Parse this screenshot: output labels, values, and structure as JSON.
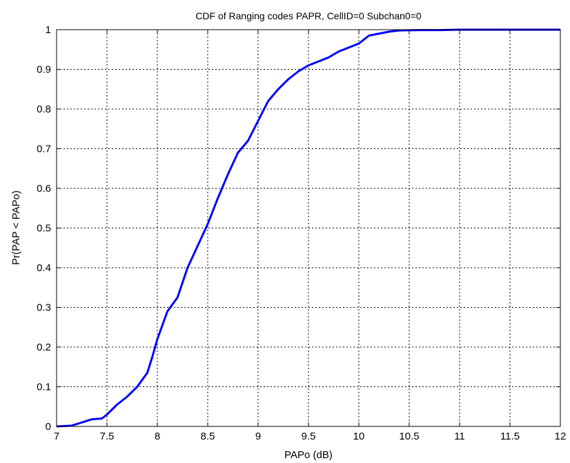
{
  "chart_data": {
    "type": "line",
    "title": "CDF of Ranging codes PAPR, CellID=0  Subchan0=0",
    "xlabel": "PAPo (dB)",
    "ylabel": "Pr(PAP < PAPo)",
    "xlim": [
      7,
      12
    ],
    "ylim": [
      0,
      1
    ],
    "xticks": [
      7,
      7.5,
      8,
      8.5,
      9,
      9.5,
      10,
      10.5,
      11,
      11.5,
      12
    ],
    "xtick_labels": [
      "7",
      "7.5",
      "8",
      "8.5",
      "9",
      "9.5",
      "10",
      "10.5",
      "11",
      "11.5",
      "12"
    ],
    "yticks": [
      0,
      0.1,
      0.2,
      0.3,
      0.4,
      0.5,
      0.6,
      0.7,
      0.8,
      0.9,
      1
    ],
    "ytick_labels": [
      "0",
      "0.1",
      "0.2",
      "0.3",
      "0.4",
      "0.5",
      "0.6",
      "0.7",
      "0.8",
      "0.9",
      "1"
    ],
    "grid": true,
    "line_color": "#0000ff",
    "series": [
      {
        "x": [
          7.0,
          7.15,
          7.25,
          7.35,
          7.45,
          7.5,
          7.6,
          7.7,
          7.8,
          7.9,
          7.95,
          8.0,
          8.05,
          8.1,
          8.2,
          8.3,
          8.4,
          8.5,
          8.6,
          8.7,
          8.8,
          8.9,
          9.0,
          9.1,
          9.2,
          9.3,
          9.4,
          9.5,
          9.6,
          9.7,
          9.8,
          9.9,
          10.0,
          10.1,
          10.2,
          10.3,
          10.4,
          10.6,
          10.8,
          11.0,
          11.1,
          11.5,
          12.0
        ],
        "y": [
          0.0,
          0.002,
          0.01,
          0.018,
          0.02,
          0.03,
          0.055,
          0.075,
          0.1,
          0.135,
          0.175,
          0.22,
          0.255,
          0.29,
          0.325,
          0.4,
          0.455,
          0.51,
          0.575,
          0.635,
          0.69,
          0.72,
          0.77,
          0.82,
          0.85,
          0.875,
          0.895,
          0.91,
          0.92,
          0.93,
          0.945,
          0.955,
          0.965,
          0.985,
          0.99,
          0.995,
          0.998,
          0.999,
          0.999,
          1.0,
          1.0,
          1.0,
          1.0
        ]
      }
    ]
  }
}
